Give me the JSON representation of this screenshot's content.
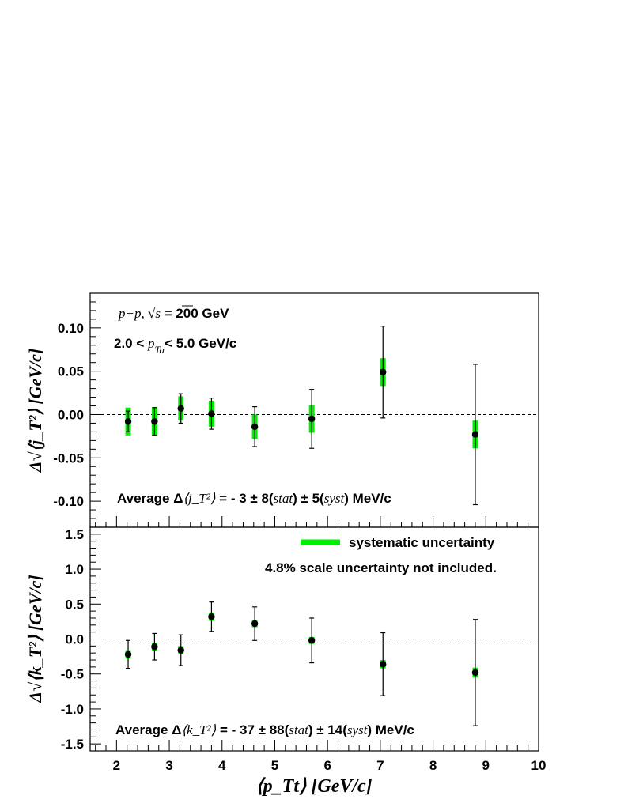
{
  "chart_data": [
    {
      "type": "scatter",
      "panel": "top",
      "ylabel": "Δ√⟨j_T²⟩ [GeV/c]",
      "ylim": [
        -0.13,
        0.14
      ],
      "yticks": [
        0.1,
        0.05,
        0.0,
        -0.05,
        -0.1
      ],
      "ytick_labels": [
        "0.10",
        "0.05",
        "0.00",
        "-0.05",
        "-0.10"
      ],
      "reference_line": 0,
      "annotations": {
        "system_prefix": "p+p, ",
        "system_energy": " = 200 GeV",
        "sqrt_s": "√s",
        "range_left": "2.0 < ",
        "range_var": "p",
        "range_sub": "Ta",
        "range_right": "< 5.0 GeV/c",
        "average_prefix": "Average Δ",
        "average_var": "⟨j_T²⟩",
        "average_value": " = - 3 ± 8(",
        "average_stat": "stat",
        "average_mid": ") ± 5(",
        "average_syst": "syst",
        "average_suffix": ") MeV/c"
      },
      "points": [
        {
          "x": 2.22,
          "y": -0.008,
          "stat": 0.012,
          "syst": 0.016
        },
        {
          "x": 2.72,
          "y": -0.008,
          "stat": 0.016,
          "syst": 0.016
        },
        {
          "x": 3.22,
          "y": 0.007,
          "stat": 0.017,
          "syst": 0.014
        },
        {
          "x": 3.8,
          "y": 0.001,
          "stat": 0.018,
          "syst": 0.015
        },
        {
          "x": 4.62,
          "y": -0.014,
          "stat": 0.023,
          "syst": 0.014
        },
        {
          "x": 5.7,
          "y": -0.005,
          "stat": 0.034,
          "syst": 0.016
        },
        {
          "x": 7.05,
          "y": 0.049,
          "stat": 0.053,
          "syst": 0.016
        },
        {
          "x": 8.8,
          "y": -0.023,
          "stat": 0.081,
          "syst": 0.016
        }
      ],
      "syst_color": "#00ee00"
    },
    {
      "type": "scatter",
      "panel": "bottom",
      "ylabel": "Δ√⟨k_T²⟩ [GeV/c]",
      "xlabel": "⟨p_Tt⟩ [GeV/c]",
      "xlim": [
        1.5,
        10
      ],
      "xticks": [
        2,
        3,
        4,
        5,
        6,
        7,
        8,
        9,
        10
      ],
      "xtick_labels": [
        "2",
        "3",
        "4",
        "5",
        "6",
        "7",
        "8",
        "9",
        "10"
      ],
      "ylim": [
        -1.6,
        1.6
      ],
      "yticks": [
        1.5,
        1.0,
        0.5,
        0.0,
        -0.5,
        -1.0,
        -1.5
      ],
      "ytick_labels": [
        "1.5",
        "1.0",
        "0.5",
        "0.0",
        "-0.5",
        "-1.0",
        "-1.5"
      ],
      "reference_line": 0,
      "legend": {
        "label": "systematic uncertainty",
        "placement": "top-right"
      },
      "scale_note": "4.8% scale uncertainty not included.",
      "annotations": {
        "average_prefix": "Average Δ",
        "average_var": "⟨k_T²⟩",
        "average_value": " = - 37 ± 88(",
        "average_stat": "stat",
        "average_mid": ") ± 14(",
        "average_syst": "syst",
        "average_suffix": ") MeV/c"
      },
      "points": [
        {
          "x": 2.22,
          "y": -0.22,
          "stat": 0.2,
          "syst": 0.06
        },
        {
          "x": 2.72,
          "y": -0.11,
          "stat": 0.19,
          "syst": 0.06
        },
        {
          "x": 3.22,
          "y": -0.16,
          "stat": 0.22,
          "syst": 0.06
        },
        {
          "x": 3.8,
          "y": 0.32,
          "stat": 0.21,
          "syst": 0.06
        },
        {
          "x": 4.62,
          "y": 0.22,
          "stat": 0.24,
          "syst": 0.05
        },
        {
          "x": 5.7,
          "y": -0.02,
          "stat": 0.32,
          "syst": 0.05
        },
        {
          "x": 7.05,
          "y": -0.36,
          "stat": 0.45,
          "syst": 0.06
        },
        {
          "x": 8.8,
          "y": -0.48,
          "stat": 0.76,
          "syst": 0.07
        }
      ],
      "syst_color": "#00ee00"
    }
  ]
}
